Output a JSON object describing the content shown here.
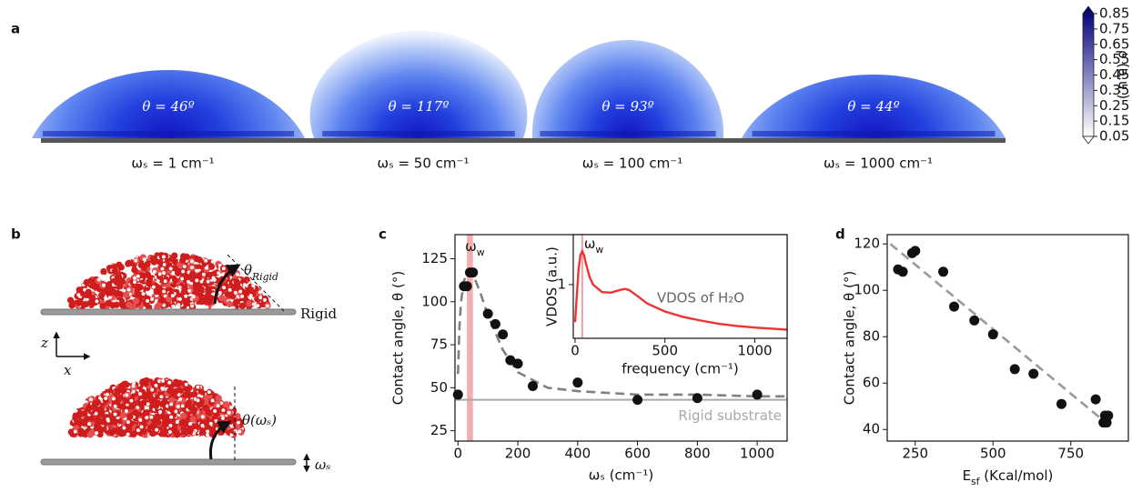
{
  "chart_data": [
    {
      "panel": "a",
      "type": "droplets",
      "angles": [
        "θ = 46º",
        "θ = 117º",
        "θ = 93º",
        "θ = 44º"
      ],
      "frequencies": [
        "ωₛ = 1 cm⁻¹",
        "ωₛ = 50 cm⁻¹",
        "ωₛ = 100 cm⁻¹",
        "ωₛ = 1000 cm⁻¹"
      ],
      "colorbar": {
        "label": "ρ (a.u.)",
        "clim": [
          0.05,
          0.85
        ],
        "ticks": [
          0.05,
          0.15,
          0.25,
          0.35,
          0.45,
          0.55,
          0.65,
          0.75,
          0.85
        ],
        "colors": [
          "#ffffff",
          "#08087e"
        ]
      }
    },
    {
      "panel": "c",
      "type": "scatter",
      "xlabel": "ωₛ (cm⁻¹)",
      "ylabel": "Contact angle, θ (°)",
      "x": [
        0,
        20,
        30,
        40,
        50,
        100,
        125,
        150,
        175,
        200,
        250,
        400,
        600,
        800,
        1000
      ],
      "values": [
        46,
        109,
        109,
        117,
        117,
        93,
        87,
        81,
        66,
        64,
        51,
        53,
        43,
        44,
        46
      ],
      "color": "#111111",
      "fit": {
        "x": [
          0,
          5,
          10,
          20,
          30,
          40,
          50,
          75,
          100,
          150,
          200,
          300,
          400,
          600,
          800,
          1000,
          1100
        ],
        "values": [
          58,
          85,
          100,
          112,
          117,
          118,
          116,
          105,
          92,
          72,
          59,
          50,
          48,
          46,
          46,
          45,
          45
        ],
        "color": "#808080"
      },
      "hline": 43,
      "hline_color": "#a9a9a9",
      "annotation": "Rigid substrate",
      "band": [
        30,
        50
      ],
      "band_color": "#f19a9a",
      "band_label": [
        "ω",
        "w"
      ],
      "xlim": [
        -10,
        1100
      ],
      "ylim": [
        19,
        139
      ],
      "xticks": [
        0,
        200,
        400,
        600,
        800,
        1000
      ],
      "yticks": [
        25,
        50,
        75,
        100,
        125
      ]
    },
    {
      "type": "line",
      "xlabel": "frequency (cm⁻¹)",
      "ylabel": "VDOS (a.u.)",
      "x": [
        0,
        10,
        20,
        30,
        40,
        50,
        60,
        80,
        100,
        150,
        200,
        250,
        280,
        300,
        350,
        400,
        500,
        600,
        700,
        800,
        900,
        1000,
        1100,
        1180
      ],
      "values": [
        0.3,
        0.8,
        1.3,
        1.55,
        1.62,
        1.55,
        1.4,
        1.15,
        1.0,
        0.86,
        0.85,
        0.9,
        0.92,
        0.9,
        0.78,
        0.65,
        0.5,
        0.4,
        0.33,
        0.27,
        0.23,
        0.2,
        0.18,
        0.16
      ],
      "color": "#ee3333",
      "annotation": "VDOS of H₂O",
      "vline": 40,
      "vline_color": "#f4a0a0",
      "vline_label": [
        "ω",
        "w"
      ],
      "xlim": [
        -10,
        1180
      ],
      "ylim": [
        0,
        1.93
      ],
      "xticks": [
        0,
        500,
        1000
      ],
      "yticks": [
        1
      ]
    },
    {
      "panel": "d",
      "type": "scatter",
      "xlabel": [
        "E",
        "sf",
        " (Kcal/mol)"
      ],
      "ylabel": "Contact angle, θ (°)",
      "x": [
        195,
        210,
        240,
        250,
        340,
        375,
        440,
        500,
        570,
        630,
        720,
        830,
        855,
        860,
        870,
        865
      ],
      "values": [
        109,
        108,
        116,
        117,
        108,
        93,
        87,
        81,
        66,
        64,
        51,
        53,
        43,
        46,
        46,
        43
      ],
      "color": "#111111",
      "fit": {
        "x": [
          170,
          880
        ],
        "values": [
          120,
          41
        ],
        "color": "#999999"
      },
      "xlim": [
        160,
        935
      ],
      "ylim": [
        35,
        124
      ],
      "xticks": [
        250,
        500,
        750
      ],
      "yticks": [
        40,
        60,
        80,
        100,
        120
      ]
    }
  ],
  "panel_b": {
    "label": "b",
    "top": {
      "angle": [
        "θ",
        "Rigid"
      ],
      "substrate": "Rigid"
    },
    "bottom": {
      "angle": "θ(ωₛ)",
      "motion": "ωₛ"
    },
    "axes": {
      "z": "z",
      "x": "x"
    }
  }
}
